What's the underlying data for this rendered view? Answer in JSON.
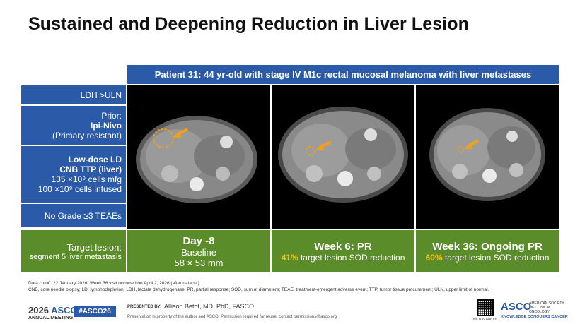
{
  "title": "Sustained and Deepening Reduction in Liver Lesion",
  "patient": "Patient 31: 44 yr-old with stage IV M1c rectal mucosal melanoma with liver metastases",
  "left": {
    "ldh": "LDH >ULN",
    "prior_label": "Prior:",
    "prior_tx": "Ipi-Nivo",
    "prior_status": "(Primary resistant)",
    "ld": "Low-dose LD",
    "cnb": "CNB TTP (liver)",
    "cells_mfg": "135 ×10⁹ cells mfg",
    "cells_infused": "100 ×10⁹ cells infused",
    "teae": "No Grade ≥3 TEAEs"
  },
  "target": {
    "label": "Target lesion:",
    "sub": "segment 5 liver metastasis"
  },
  "timepoints": [
    {
      "title": "Day -8",
      "line1": "Baseline",
      "line2": "58 × 53 mm"
    },
    {
      "title": "Week 6: PR",
      "pct": "41%",
      "text": " target lesion SOD reduction"
    },
    {
      "title": "Week 36: Ongoing PR",
      "pct": "60%",
      "text": " target lesion SOD reduction"
    }
  ],
  "footnote": {
    "line1": "Data cutoff: 22 January 2026; Week 36 visit occurred on April 2, 2026 (after datacut).",
    "line2": "CNB, core needle biopsy; LD, lymphodepletion; LDH, lactate dehydrogenase; PR, partial response; SOD, sum of diameters; TEAE, treatment-emergent adverse event; TTP, tumor tissue procurement; ULN, upper limit of normal."
  },
  "footer": {
    "meeting_year": "2026",
    "meeting_name": "ASCO",
    "meeting_sub": "ANNUAL MEETING",
    "hashtag": "#ASCO26",
    "presented_by": "PRESENTED BY:",
    "presenter": "Allison Betof, MD, PhD, FASCO",
    "property": "Presentation is property of the author and ASCO. Permission required for reuse; contact permissions@asco.org",
    "nct": "NCT06060613",
    "asco_right": "ASCO",
    "asco_right_sub": "AMERICAN SOCIETY OF CLINICAL ONCOLOGY",
    "asco_right_tag": "KNOWLEDGE CONQUERS CANCER"
  },
  "colors": {
    "blue": "#2b5aa8",
    "green": "#5b8c2a",
    "highlight": "#f5c518",
    "arrow": "#f0a020"
  }
}
